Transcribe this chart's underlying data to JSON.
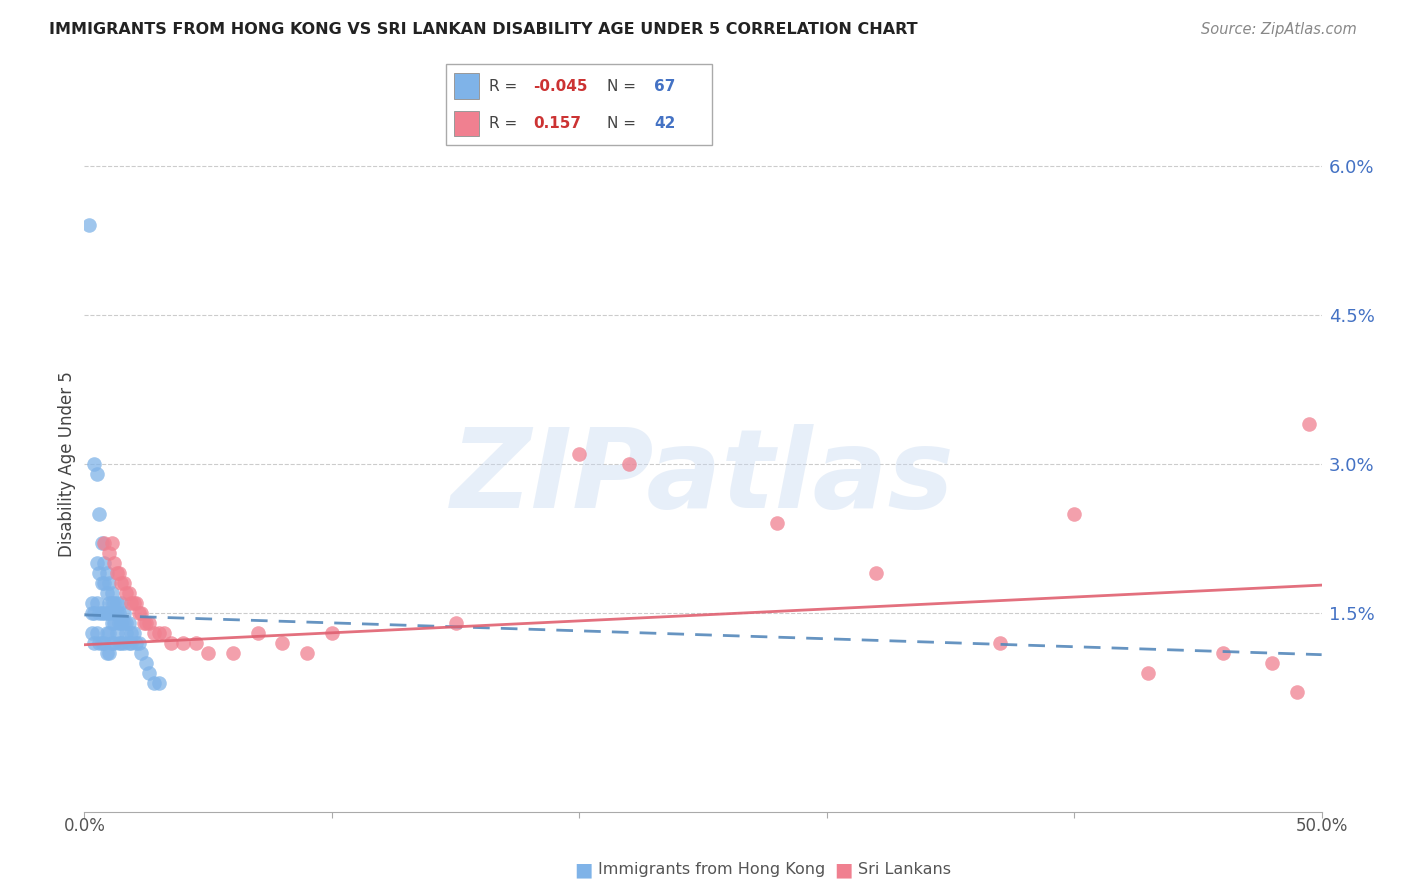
{
  "title": "IMMIGRANTS FROM HONG KONG VS SRI LANKAN DISABILITY AGE UNDER 5 CORRELATION CHART",
  "source": "Source: ZipAtlas.com",
  "ylabel": "Disability Age Under 5",
  "color_hk": "#7fb3e8",
  "color_sl": "#f08090",
  "line_hk": "#5588bb",
  "line_sl": "#e06070",
  "legend_r_hk": "-0.045",
  "legend_n_hk": "67",
  "legend_r_sl": "0.157",
  "legend_n_sl": "42",
  "watermark_text": "ZIPatlas",
  "xlim": [
    0.0,
    0.5
  ],
  "ylim": [
    -0.005,
    0.065
  ],
  "ytick_vals": [
    0.0,
    0.015,
    0.03,
    0.045,
    0.06
  ],
  "ytick_labels": [
    "",
    "1.5%",
    "3.0%",
    "4.5%",
    "6.0%"
  ],
  "hk_x": [
    0.002,
    0.003,
    0.003,
    0.004,
    0.004,
    0.004,
    0.005,
    0.005,
    0.005,
    0.005,
    0.006,
    0.006,
    0.006,
    0.006,
    0.007,
    0.007,
    0.007,
    0.007,
    0.008,
    0.008,
    0.008,
    0.008,
    0.009,
    0.009,
    0.009,
    0.009,
    0.009,
    0.01,
    0.01,
    0.01,
    0.01,
    0.01,
    0.011,
    0.011,
    0.011,
    0.011,
    0.012,
    0.012,
    0.012,
    0.012,
    0.013,
    0.013,
    0.013,
    0.014,
    0.014,
    0.014,
    0.015,
    0.015,
    0.015,
    0.016,
    0.016,
    0.016,
    0.017,
    0.017,
    0.018,
    0.018,
    0.019,
    0.019,
    0.02,
    0.021,
    0.022,
    0.023,
    0.025,
    0.026,
    0.028,
    0.03,
    0.003
  ],
  "hk_y": [
    0.054,
    0.016,
    0.013,
    0.03,
    0.015,
    0.012,
    0.029,
    0.02,
    0.016,
    0.013,
    0.025,
    0.019,
    0.015,
    0.012,
    0.022,
    0.018,
    0.015,
    0.012,
    0.02,
    0.018,
    0.015,
    0.012,
    0.019,
    0.017,
    0.015,
    0.013,
    0.011,
    0.018,
    0.016,
    0.015,
    0.013,
    0.011,
    0.017,
    0.016,
    0.014,
    0.012,
    0.016,
    0.015,
    0.014,
    0.012,
    0.016,
    0.015,
    0.013,
    0.015,
    0.014,
    0.012,
    0.016,
    0.014,
    0.012,
    0.015,
    0.014,
    0.012,
    0.014,
    0.013,
    0.014,
    0.012,
    0.013,
    0.012,
    0.013,
    0.012,
    0.012,
    0.011,
    0.01,
    0.009,
    0.008,
    0.008,
    0.015
  ],
  "sl_x": [
    0.008,
    0.01,
    0.011,
    0.012,
    0.013,
    0.014,
    0.015,
    0.016,
    0.017,
    0.018,
    0.019,
    0.02,
    0.021,
    0.022,
    0.023,
    0.024,
    0.025,
    0.026,
    0.028,
    0.03,
    0.032,
    0.035,
    0.04,
    0.045,
    0.05,
    0.06,
    0.07,
    0.08,
    0.09,
    0.1,
    0.15,
    0.2,
    0.22,
    0.28,
    0.32,
    0.37,
    0.4,
    0.43,
    0.46,
    0.48,
    0.49,
    0.495
  ],
  "sl_y": [
    0.022,
    0.021,
    0.022,
    0.02,
    0.019,
    0.019,
    0.018,
    0.018,
    0.017,
    0.017,
    0.016,
    0.016,
    0.016,
    0.015,
    0.015,
    0.014,
    0.014,
    0.014,
    0.013,
    0.013,
    0.013,
    0.012,
    0.012,
    0.012,
    0.011,
    0.011,
    0.013,
    0.012,
    0.011,
    0.013,
    0.014,
    0.031,
    0.03,
    0.024,
    0.019,
    0.012,
    0.025,
    0.009,
    0.011,
    0.01,
    0.007,
    0.034
  ],
  "hk_line_x": [
    0.0,
    0.5
  ],
  "hk_line_y_start": 0.0148,
  "hk_line_y_end": 0.0108,
  "sl_line_x": [
    0.0,
    0.5
  ],
  "sl_line_y_start": 0.0118,
  "sl_line_y_end": 0.0178
}
